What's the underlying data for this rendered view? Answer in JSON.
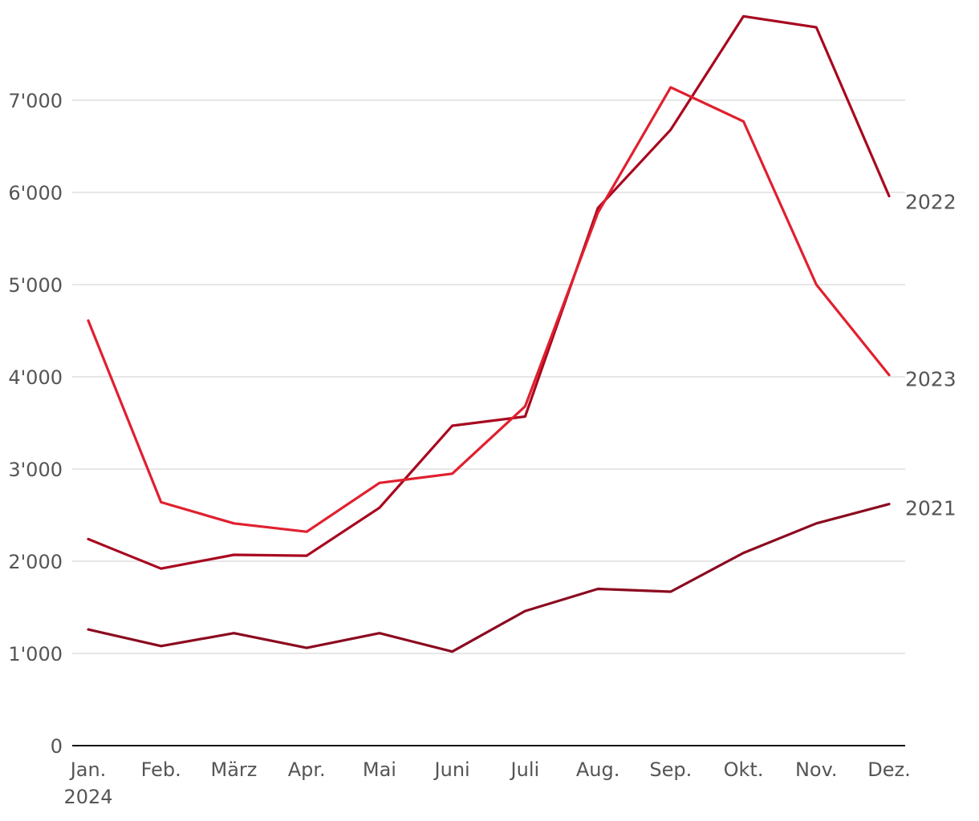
{
  "chart_data": {
    "type": "line",
    "categories": [
      "Jan.",
      "Feb.",
      "März",
      "Apr.",
      "Mai",
      "Juni",
      "Juli",
      "Aug.",
      "Sep.",
      "Okt.",
      "Nov.",
      "Dez."
    ],
    "year_sublabel": "2024",
    "ylim": [
      0,
      8000
    ],
    "yticks": [
      0,
      1000,
      2000,
      3000,
      4000,
      5000,
      6000,
      7000
    ],
    "ytick_labels": [
      "0",
      "1'000",
      "2'000",
      "3'000",
      "4'000",
      "5'000",
      "6'000",
      "7'000"
    ],
    "grid": true,
    "series": [
      {
        "name": "2021",
        "color": "#8b0a1f",
        "values": [
          1260,
          1080,
          1220,
          1060,
          1220,
          1020,
          1460,
          1700,
          1670,
          2090,
          2410,
          2620
        ]
      },
      {
        "name": "2022",
        "color": "#a8081f",
        "values": [
          2240,
          1920,
          2070,
          2060,
          2580,
          3470,
          3570,
          5830,
          6680,
          7910,
          7790,
          5960
        ]
      },
      {
        "name": "2023",
        "color": "#e0202f",
        "values": [
          4610,
          2640,
          2410,
          2320,
          2850,
          2950,
          3680,
          5780,
          7140,
          6770,
          5000,
          4020
        ]
      }
    ]
  }
}
